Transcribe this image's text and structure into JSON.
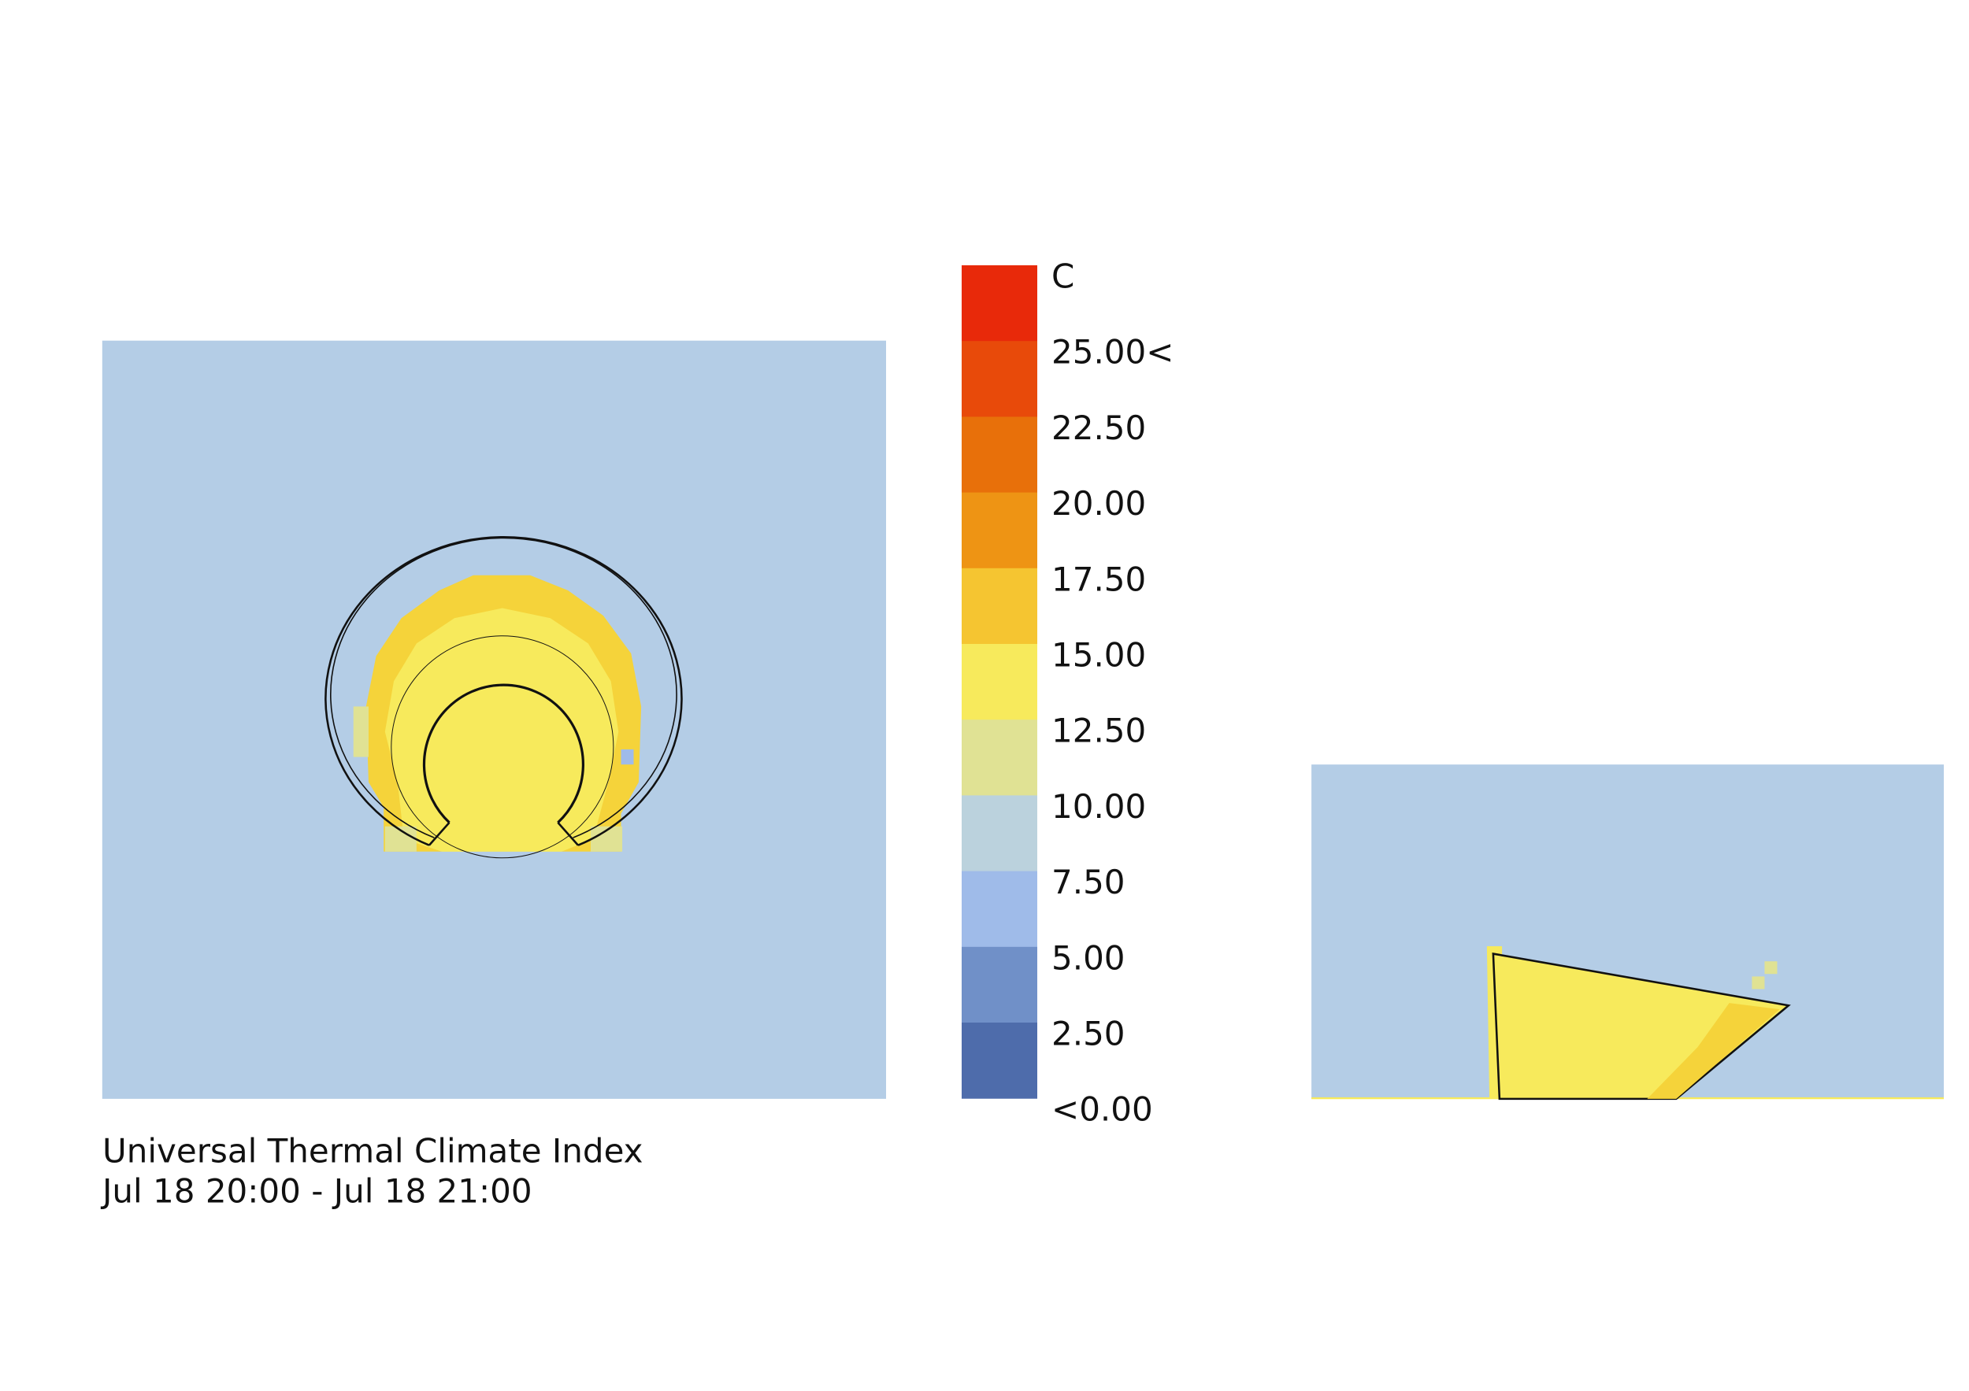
{
  "legend": {
    "unit": "C",
    "labels": [
      "25.00<",
      "22.50",
      "20.00",
      "17.50",
      "15.00",
      "12.50",
      "10.00",
      "7.50",
      "5.00",
      "2.50",
      "<0.00"
    ],
    "colors": [
      "#e8290a",
      "#e84a0a",
      "#e8700a",
      "#ee9414",
      "#f5c531",
      "#f7ea5c",
      "#e0e294",
      "#bbd2dd",
      "#9fbbe9",
      "#7090c8",
      "#4e6cab"
    ]
  },
  "caption": {
    "title": "Universal Thermal Climate Index",
    "period": "Jul 18 20:00 - Jul 18 21:00"
  }
}
